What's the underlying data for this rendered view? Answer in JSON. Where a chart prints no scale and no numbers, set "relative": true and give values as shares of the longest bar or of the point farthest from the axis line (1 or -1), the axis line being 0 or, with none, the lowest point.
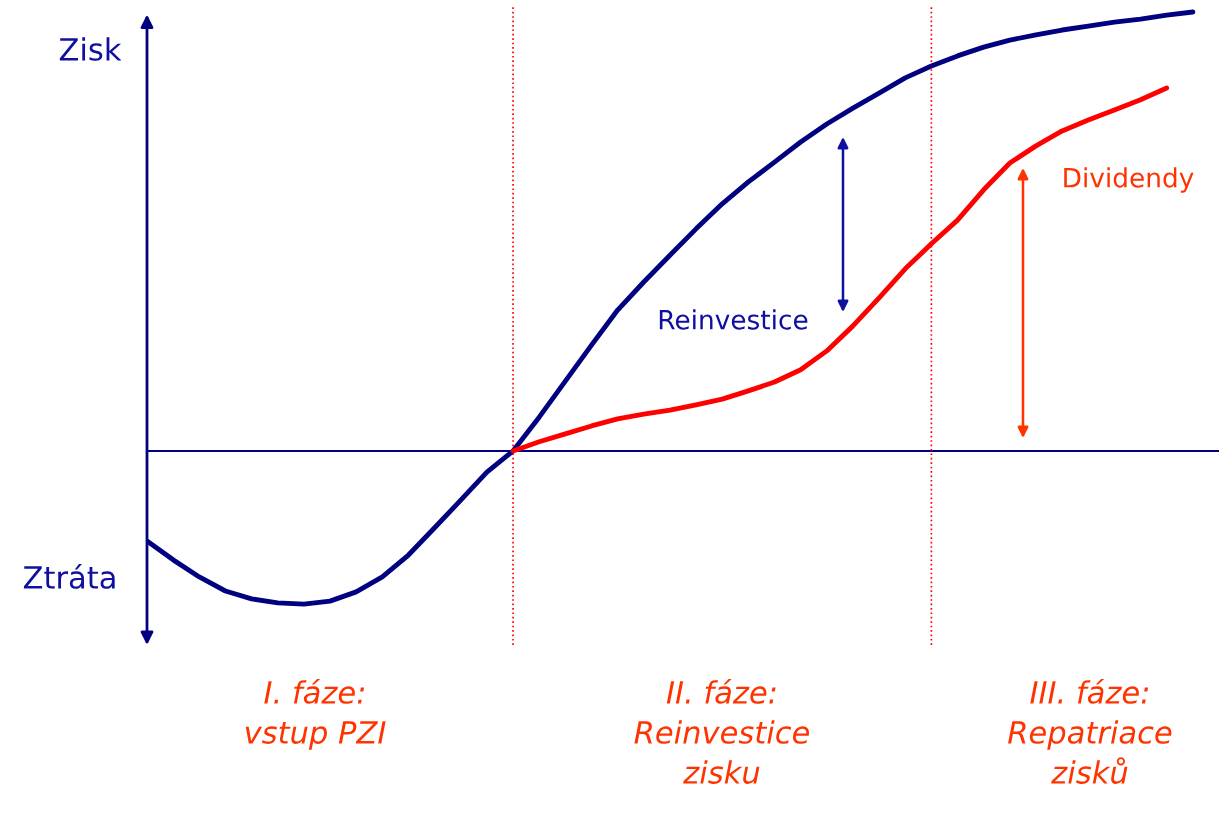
{
  "chart_data": {
    "type": "line",
    "relative": true,
    "categories": [
      null,
      null,
      null,
      null,
      null,
      null,
      null,
      null,
      null,
      null,
      null,
      null,
      null,
      null,
      null,
      null,
      null,
      null,
      null,
      null,
      null,
      null,
      null,
      null,
      null,
      null,
      null,
      null,
      null,
      null,
      null,
      null,
      null,
      null,
      null,
      null,
      null,
      null,
      null,
      null,
      null
    ],
    "series": [
      {
        "color": "#000080",
        "values": [
          -0.205,
          -0.248,
          -0.287,
          -0.319,
          -0.337,
          -0.346,
          -0.349,
          -0.342,
          -0.321,
          -0.287,
          -0.237,
          -0.175,
          -0.112,
          -0.048,
          0.0,
          0.077,
          0.159,
          0.241,
          0.321,
          0.385,
          0.446,
          0.506,
          0.563,
          0.613,
          0.658,
          0.704,
          0.745,
          0.781,
          0.815,
          0.85,
          0.877,
          0.9,
          0.92,
          0.936,
          0.948,
          0.959,
          0.968,
          0.977,
          0.984,
          0.993,
          1.0
        ]
      },
      {
        "color": "#ff0000",
        "values": [
          null,
          null,
          null,
          null,
          null,
          null,
          null,
          null,
          null,
          null,
          null,
          null,
          null,
          null,
          0.0,
          0.021,
          0.039,
          0.057,
          0.073,
          0.084,
          0.093,
          0.105,
          0.118,
          0.137,
          0.157,
          0.185,
          0.228,
          0.285,
          0.349,
          0.415,
          0.472,
          0.526,
          0.595,
          0.656,
          0.695,
          0.729,
          0.754,
          0.777,
          0.8,
          0.827,
          null
        ]
      }
    ],
    "ref_lines": [
      {
        "axis": "y",
        "value": 0,
        "color": "#000080",
        "line_style": "solid"
      }
    ],
    "annotations": [
      "Zisk",
      "Ztráta",
      "I. fáze:\nvstup PZI",
      "II. fáze:\nReinvestice\nzisku",
      "III. fáze:\nRepatriace\nzisků",
      "Reinvestice",
      "Dividendy"
    ],
    "legend": false,
    "line_style": "solid",
    "marker": "none"
  }
}
